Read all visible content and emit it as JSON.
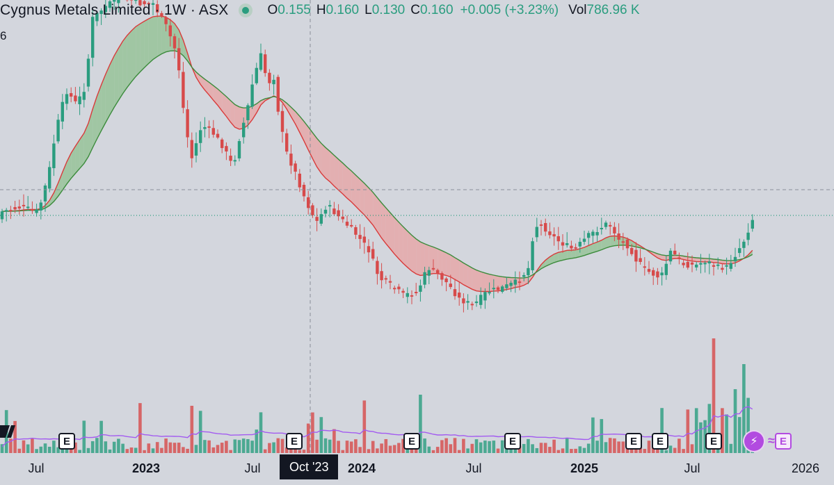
{
  "header": {
    "title": "Cygnus Metals Limited · 1W · ASX",
    "open_label": "O",
    "open": "0.155",
    "high_label": "H",
    "high": "0.160",
    "low_label": "L",
    "low": "0.130",
    "close_label": "C",
    "close": "0.160",
    "change": "+0.005 (+3.23%)",
    "vol_label": "Vol",
    "vol": "786.96 K",
    "left_tick": "6"
  },
  "x_axis": {
    "ticks": [
      "Jul",
      "2023",
      "Jul",
      "2024",
      "Jul",
      "2025",
      "Jul",
      "2026"
    ],
    "bold_ticks": [
      "2023",
      "2024",
      "2025"
    ],
    "crosshair_label": "Oct '23"
  },
  "earnings_badge_label": "E",
  "colors": {
    "up": "#2a9d7f",
    "down": "#d74a4a",
    "volume_ma": "#a35bf0",
    "ribbon_up_fill": "#8fc08f",
    "ribbon_down_fill": "#e8a1a1",
    "fast_ma": "#d93a3a",
    "slow_ma": "#3b8b3b",
    "background": "#d3d6dd"
  },
  "chart_data": {
    "type": "candlestick",
    "title": "Cygnus Metals Limited · 1W · ASX",
    "interval": "1W",
    "x_range": [
      "2022-05",
      "2025-10"
    ],
    "note_y_scale": "price axis not shown; last close 0.160",
    "last_bar": {
      "open": 0.155,
      "high": 0.16,
      "low": 0.13,
      "close": 0.16,
      "change": 0.005,
      "change_pct": 3.23,
      "volume_k": 786.96
    },
    "series": [
      {
        "name": "Price",
        "kind": "candles"
      },
      {
        "name": "",
        "kind": "volume"
      },
      {
        "name": "",
        "kind": "ma"
      },
      {
        "name": "",
        "kind": "ma"
      }
    ],
    "markers": [
      "earnings (E)"
    ],
    "grid": false
  }
}
